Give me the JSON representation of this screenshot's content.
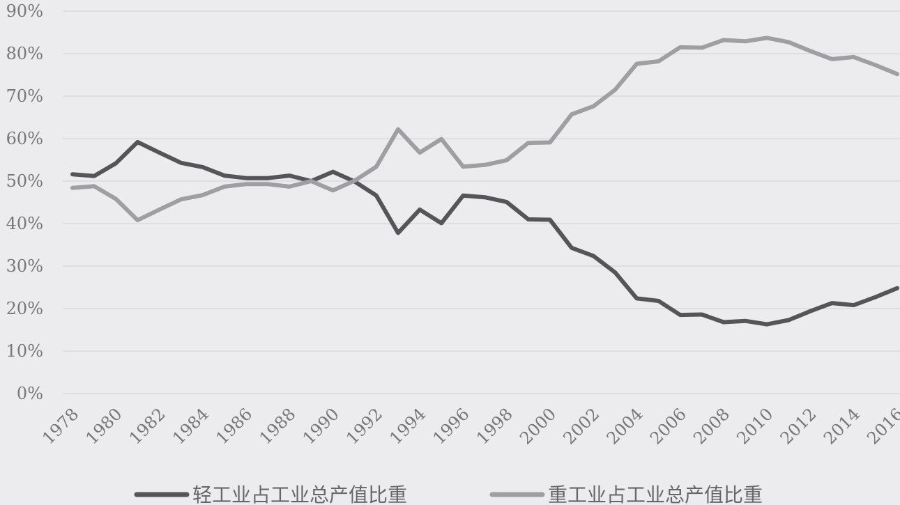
{
  "chart_data": {
    "type": "line",
    "title": "",
    "xlabel": "",
    "ylabel": "",
    "ylim": [
      0,
      90
    ],
    "y_ticks": [
      "0%",
      "10%",
      "20%",
      "30%",
      "40%",
      "50%",
      "60%",
      "70%",
      "80%",
      "90%"
    ],
    "x": [
      1978,
      1979,
      1980,
      1981,
      1982,
      1983,
      1984,
      1985,
      1986,
      1987,
      1988,
      1989,
      1990,
      1991,
      1992,
      1993,
      1994,
      1995,
      1996,
      1997,
      1998,
      1999,
      2000,
      2001,
      2002,
      2003,
      2004,
      2005,
      2006,
      2007,
      2008,
      2009,
      2010,
      2011,
      2012,
      2013,
      2014,
      2015,
      2016
    ],
    "x_ticks": [
      "1978",
      "1980",
      "1982",
      "1984",
      "1986",
      "1988",
      "1990",
      "1992",
      "1994",
      "1996",
      "1998",
      "2000",
      "2002",
      "2004",
      "2006",
      "2008",
      "2010",
      "2012",
      "2014",
      "2016"
    ],
    "grid": true,
    "legend_position": "bottom",
    "series": [
      {
        "name": "轻工业占工业总产值比重",
        "color": "#555559",
        "values": [
          51.6,
          51.2,
          54.2,
          59.2,
          56.7,
          54.3,
          53.3,
          51.3,
          50.7,
          50.7,
          51.3,
          50.0,
          52.2,
          49.9,
          46.6,
          37.8,
          43.3,
          40.1,
          46.6,
          46.2,
          45.1,
          41.0,
          40.9,
          34.3,
          32.4,
          28.5,
          22.4,
          21.8,
          18.5,
          18.6,
          16.8,
          17.1,
          16.3,
          17.3,
          19.4,
          21.3,
          20.8,
          22.7,
          24.8
        ]
      },
      {
        "name": "重工业占工业总产值比重",
        "color": "#9e9ea3",
        "values": [
          48.4,
          48.8,
          45.8,
          40.8,
          43.3,
          45.7,
          46.7,
          48.7,
          49.3,
          49.3,
          48.7,
          50.0,
          47.8,
          50.1,
          53.4,
          62.2,
          56.7,
          59.9,
          53.4,
          53.8,
          54.9,
          59.0,
          59.1,
          65.7,
          67.6,
          71.5,
          77.6,
          78.2,
          81.5,
          81.4,
          83.2,
          82.9,
          83.7,
          82.7,
          80.6,
          78.7,
          79.2,
          77.3,
          75.2
        ]
      }
    ]
  }
}
